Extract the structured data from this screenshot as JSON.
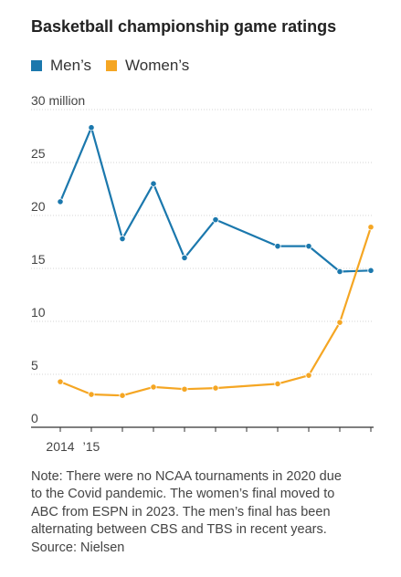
{
  "title": "Basketball championship game ratings",
  "legend": [
    {
      "label": "Men’s",
      "color": "#1b78ad"
    },
    {
      "label": "Women’s",
      "color": "#f5a623"
    }
  ],
  "chart_data": {
    "type": "line",
    "x": [
      2014,
      2015,
      2016,
      2017,
      2018,
      2019,
      2021,
      2022,
      2023,
      2024
    ],
    "series": [
      {
        "name": "Men’s",
        "color": "#1b78ad",
        "values": [
          21.3,
          28.3,
          17.8,
          23.0,
          16.0,
          19.6,
          17.1,
          17.1,
          14.7,
          14.8
        ]
      },
      {
        "name": "Women’s",
        "color": "#f5a623",
        "values": [
          4.3,
          3.1,
          3.0,
          3.8,
          3.6,
          3.7,
          4.1,
          4.9,
          9.9,
          18.9
        ]
      }
    ],
    "y_ticks": [
      {
        "value": 0,
        "label": "0"
      },
      {
        "value": 5,
        "label": "5"
      },
      {
        "value": 10,
        "label": "10"
      },
      {
        "value": 15,
        "label": "15"
      },
      {
        "value": 20,
        "label": "20"
      },
      {
        "value": 25,
        "label": "25"
      },
      {
        "value": 30,
        "label": "30 million"
      }
    ],
    "x_tick_values": [
      2014,
      2015,
      2016,
      2017,
      2018,
      2019,
      2020,
      2021,
      2022,
      2023,
      2024
    ],
    "x_labels": [
      {
        "value": 2014,
        "label": "2014"
      },
      {
        "value": 2015,
        "label": "’15"
      }
    ],
    "ylim": [
      0,
      30
    ],
    "xlim": [
      2014,
      2024
    ],
    "grid": true
  },
  "note": [
    "Note: There were no NCAA tournaments in 2020 due",
    "to the Covid pandemic. The women’s final moved to",
    "ABC from ESPN in 2023. The men’s final has been",
    "alternating between CBS and TBS in recent years.",
    "Source: Nielsen"
  ]
}
